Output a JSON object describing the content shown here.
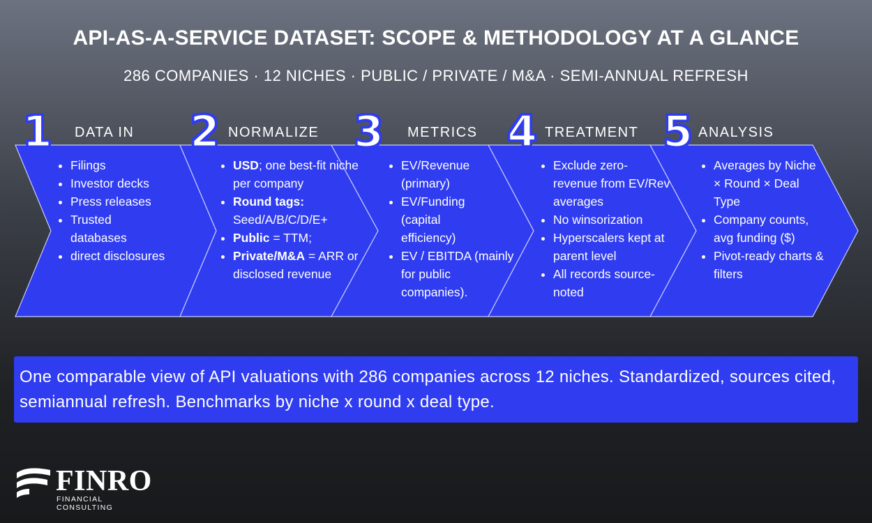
{
  "header": {
    "title": "API-AS-A-SERVICE DATASET: SCOPE & METHODOLOGY AT A GLANCE",
    "subtitle": "286 COMPANIES · 12 NICHES · PUBLIC / PRIVATE / M&A · SEMI-ANNUAL REFRESH"
  },
  "colors": {
    "accent": "#2f3cf0",
    "chevron_outline": "#c9ccff"
  },
  "steps": [
    {
      "number": "1",
      "title": "DATA IN",
      "items": [
        "Filings",
        "Investor decks",
        "Press releases",
        "Trusted databases",
        "direct disclosures"
      ]
    },
    {
      "number": "2",
      "title": "NORMALIZE",
      "items": [
        {
          "bold": "USD",
          "text": "; one best-fit niche per company"
        },
        {
          "bold": "Round tags:",
          "text": " Seed/A/B/C/D/E+"
        },
        {
          "bold": "Public",
          "text": " = TTM;"
        },
        {
          "bold": "Private/M&A",
          "text": " = ARR or disclosed revenue"
        }
      ]
    },
    {
      "number": "3",
      "title": "METRICS",
      "items": [
        "EV/Revenue (primary)",
        "EV/Funding (capital efficiency)",
        "EV / EBITDA (mainly for public companies)."
      ]
    },
    {
      "number": "4",
      "title": "TREATMENT",
      "items": [
        "Exclude zero-revenue from EV/Rev averages",
        "No winsorization",
        "Hyperscalers kept at parent level",
        "All records source-noted"
      ]
    },
    {
      "number": "5",
      "title": "ANALYSIS",
      "items": [
        "Averages by Niche × Round × Deal Type",
        "Company counts, avg funding ($)",
        "Pivot-ready charts & filters"
      ]
    }
  ],
  "summary": "One comparable view of API valuations with 286 companies across 12 niches. Standardized, sources cited, semiannual refresh. Benchmarks by niche x round x deal type.",
  "logo": {
    "word": "FINRO",
    "tagline": "FINANCIAL CONSULTING",
    "icon": "finro-wave-logo"
  }
}
